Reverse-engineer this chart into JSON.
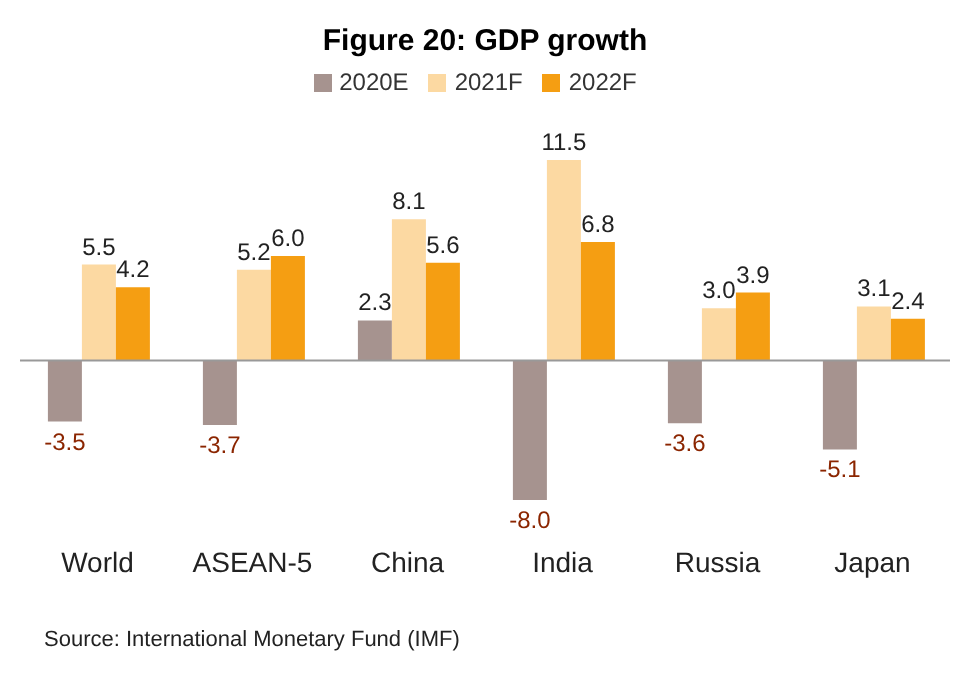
{
  "chart_data": {
    "type": "bar",
    "title": "Figure 20: GDP growth",
    "categories": [
      "World",
      "ASEAN-5",
      "China",
      "India",
      "Russia",
      "Japan"
    ],
    "series": [
      {
        "name": "2020E",
        "color": "#a6938f",
        "values": [
          -3.5,
          -3.7,
          2.3,
          -8.0,
          -3.6,
          -5.1
        ],
        "value_labels": [
          "-3.5",
          "-3.7",
          "2.3",
          "-8.0",
          "-3.6",
          "-5.1"
        ]
      },
      {
        "name": "2021F",
        "color": "#fcd9a2",
        "values": [
          5.5,
          5.2,
          8.1,
          11.5,
          3.0,
          3.1
        ],
        "value_labels": [
          "5.5",
          "5.2",
          "8.1",
          "11.5",
          "3.0",
          "3.1"
        ]
      },
      {
        "name": "2022F",
        "color": "#f59e12",
        "values": [
          4.2,
          6.0,
          5.6,
          6.8,
          3.9,
          2.4
        ],
        "value_labels": [
          "4.2",
          "6.0",
          "5.6",
          "6.8",
          "3.9",
          "2.4"
        ]
      }
    ],
    "legend": "top",
    "grid": false,
    "annotations": [
      "Source: International Monetary Fund (IMF)"
    ]
  }
}
